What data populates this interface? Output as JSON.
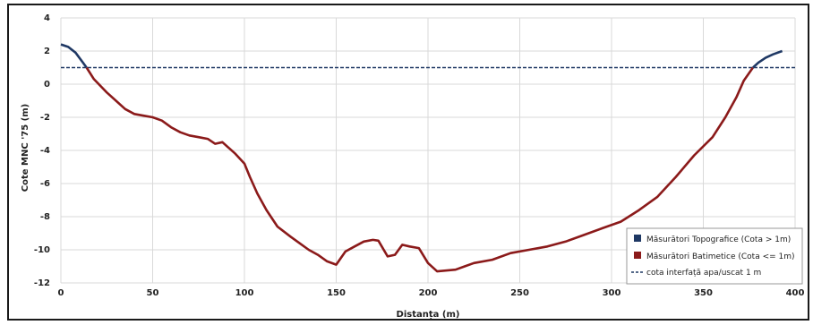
{
  "chart_data": {
    "type": "line",
    "xlabel": "Distanța (m)",
    "ylabel": "Cote MNC '75 (m)",
    "xlim": [
      0,
      400
    ],
    "ylim": [
      -12,
      4
    ],
    "xticks": [
      0,
      50,
      100,
      150,
      200,
      250,
      300,
      350,
      400
    ],
    "yticks": [
      -12,
      -10,
      -8,
      -6,
      -4,
      -2,
      0,
      2,
      4
    ],
    "grid": true,
    "legend_position": "bottom-right",
    "series": [
      {
        "name": "Măsurători Topografice (Cota > 1m)",
        "color": "#1f3864",
        "segments": [
          [
            [
              0,
              2.4
            ],
            [
              4,
              2.25
            ],
            [
              8,
              1.9
            ],
            [
              12,
              1.3
            ],
            [
              14,
              1.0
            ]
          ],
          [
            [
              377,
              1.0
            ],
            [
              380,
              1.3
            ],
            [
              384,
              1.6
            ],
            [
              388,
              1.8
            ],
            [
              393,
              2.0
            ]
          ]
        ]
      },
      {
        "name": "Măsurători Batimetice (Cota <= 1m)",
        "color": "#8b1a1a",
        "points": [
          [
            14,
            1.0
          ],
          [
            18,
            0.3
          ],
          [
            25,
            -0.5
          ],
          [
            30,
            -1.0
          ],
          [
            35,
            -1.5
          ],
          [
            40,
            -1.8
          ],
          [
            45,
            -1.9
          ],
          [
            50,
            -2.0
          ],
          [
            55,
            -2.2
          ],
          [
            60,
            -2.6
          ],
          [
            65,
            -2.9
          ],
          [
            70,
            -3.1
          ],
          [
            75,
            -3.2
          ],
          [
            80,
            -3.3
          ],
          [
            84,
            -3.6
          ],
          [
            88,
            -3.5
          ],
          [
            95,
            -4.2
          ],
          [
            100,
            -4.8
          ],
          [
            103,
            -5.6
          ],
          [
            107,
            -6.6
          ],
          [
            112,
            -7.6
          ],
          [
            118,
            -8.6
          ],
          [
            125,
            -9.2
          ],
          [
            130,
            -9.6
          ],
          [
            135,
            -10.0
          ],
          [
            140,
            -10.3
          ],
          [
            145,
            -10.7
          ],
          [
            150,
            -10.9
          ],
          [
            155,
            -10.1
          ],
          [
            160,
            -9.8
          ],
          [
            165,
            -9.5
          ],
          [
            170,
            -9.4
          ],
          [
            173,
            -9.45
          ],
          [
            178,
            -10.4
          ],
          [
            182,
            -10.3
          ],
          [
            186,
            -9.7
          ],
          [
            190,
            -9.8
          ],
          [
            195,
            -9.9
          ],
          [
            200,
            -10.8
          ],
          [
            205,
            -11.3
          ],
          [
            215,
            -11.2
          ],
          [
            220,
            -11.0
          ],
          [
            225,
            -10.8
          ],
          [
            235,
            -10.6
          ],
          [
            245,
            -10.2
          ],
          [
            255,
            -10.0
          ],
          [
            265,
            -9.8
          ],
          [
            275,
            -9.5
          ],
          [
            285,
            -9.1
          ],
          [
            295,
            -8.7
          ],
          [
            305,
            -8.3
          ],
          [
            315,
            -7.6
          ],
          [
            325,
            -6.8
          ],
          [
            335,
            -5.6
          ],
          [
            345,
            -4.3
          ],
          [
            355,
            -3.2
          ],
          [
            362,
            -2.0
          ],
          [
            368,
            -0.8
          ],
          [
            372,
            0.2
          ],
          [
            377,
            1.0
          ]
        ]
      },
      {
        "name": "cota interfață apa/uscat 1 m",
        "color": "#1f3864",
        "dashed": true,
        "points": [
          [
            0,
            1.0
          ],
          [
            400,
            1.0
          ]
        ]
      }
    ]
  }
}
